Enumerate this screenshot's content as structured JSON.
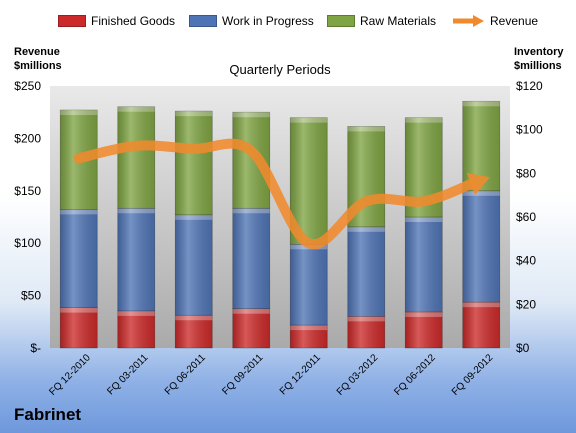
{
  "chart_data": {
    "type": "bar",
    "title": "Quarterly Periods",
    "categories": [
      "FQ 12-2010",
      "FQ 03-2011",
      "FQ 06-2011",
      "FQ 09-2011",
      "FQ 12-2011",
      "FQ 03-2012",
      "FQ 06-2012",
      "FQ 09-2012"
    ],
    "stacked": true,
    "left_axis": {
      "label_line1": "Revenue",
      "label_line2": "$millions",
      "range": [
        0,
        250
      ],
      "ticks": [
        0,
        50,
        100,
        150,
        200,
        250
      ],
      "tick_labels": [
        "$-",
        "$50",
        "$100",
        "$150",
        "$200",
        "$250"
      ]
    },
    "right_axis": {
      "label_line1": "Inventory",
      "label_line2": "$millions",
      "range": [
        0,
        120
      ],
      "ticks": [
        0,
        20,
        40,
        60,
        80,
        100,
        120
      ],
      "tick_labels": [
        "$0",
        "$20",
        "$40",
        "$60",
        "$80",
        "$100",
        "$120"
      ]
    },
    "series": [
      {
        "name": "Finished Goods",
        "axis": "right",
        "color": "#cc2a2a",
        "values": [
          18.5,
          17,
          15,
          18,
          10.5,
          14.5,
          16.5,
          21
        ]
      },
      {
        "name": "Work in Progress",
        "axis": "right",
        "color": "#4f74b5",
        "values": [
          45,
          47,
          46,
          46,
          37,
          41,
          43.5,
          51
        ]
      },
      {
        "name": "Raw Materials",
        "axis": "right",
        "color": "#7fa443",
        "values": [
          45.5,
          46.5,
          47.5,
          44,
          58,
          46,
          45.5,
          41
        ]
      },
      {
        "name": "Revenue",
        "axis": "left",
        "type": "line",
        "color": "#f08a2e",
        "values": [
          181,
          193,
          190,
          188,
          100,
          140,
          140,
          160
        ]
      }
    ],
    "legend_position": "top",
    "grid": false
  },
  "brand": "Fabrinet"
}
